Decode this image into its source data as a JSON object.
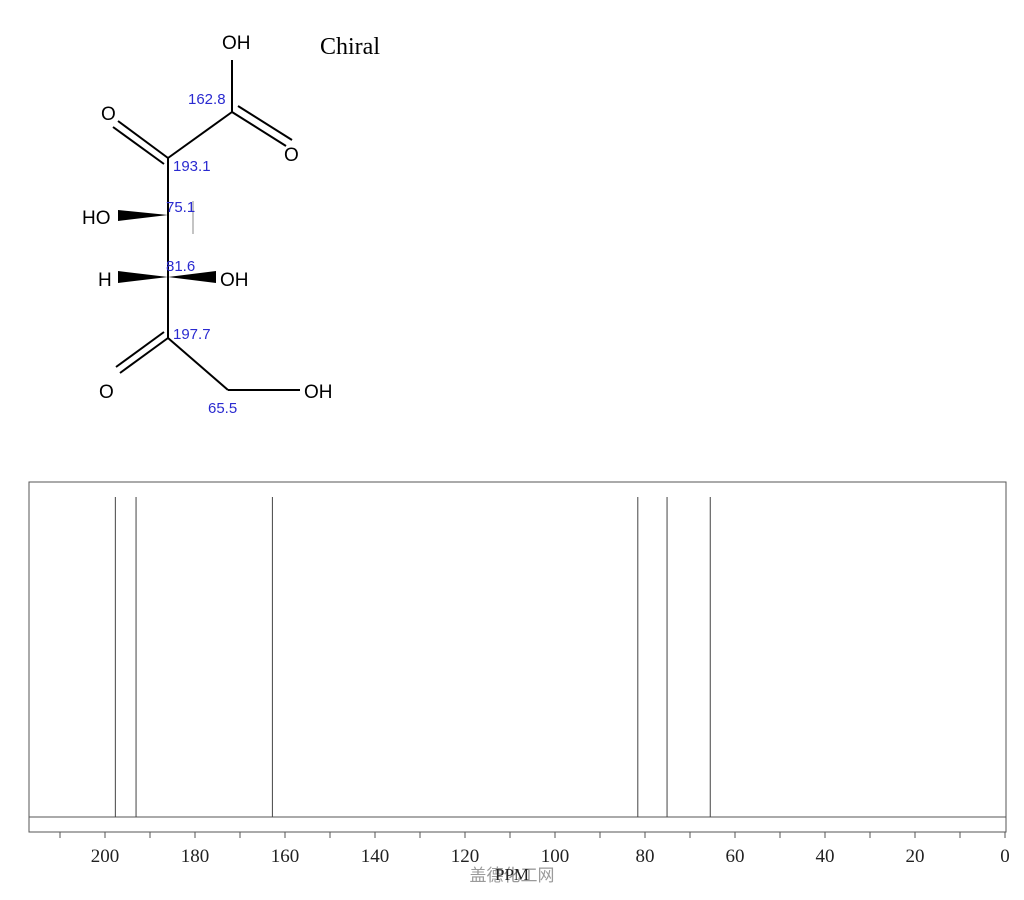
{
  "structure": {
    "label_chiral": "Chiral",
    "atoms": {
      "oh_acid": "OH",
      "o_acid": "O",
      "o_keto1": "O",
      "ho_c3": "HO",
      "h_c4": "H",
      "oh_c4": "OH",
      "o_keto2": "O",
      "oh_c6": "OH"
    },
    "shift_labels": [
      "162.8",
      "193.1",
      "75.1",
      "81.6",
      "197.7",
      "65.5"
    ]
  },
  "chart_data": {
    "type": "nmr_stick_spectrum",
    "xlabel": "PPM",
    "xlim": [
      220,
      0
    ],
    "x_reversed": true,
    "ticks": [
      200,
      180,
      160,
      140,
      120,
      100,
      80,
      60,
      40,
      20,
      0
    ],
    "peaks": [
      197.7,
      193.1,
      162.8,
      81.6,
      75.1,
      65.5
    ],
    "grid": false,
    "watermark": "盖德化工网"
  }
}
